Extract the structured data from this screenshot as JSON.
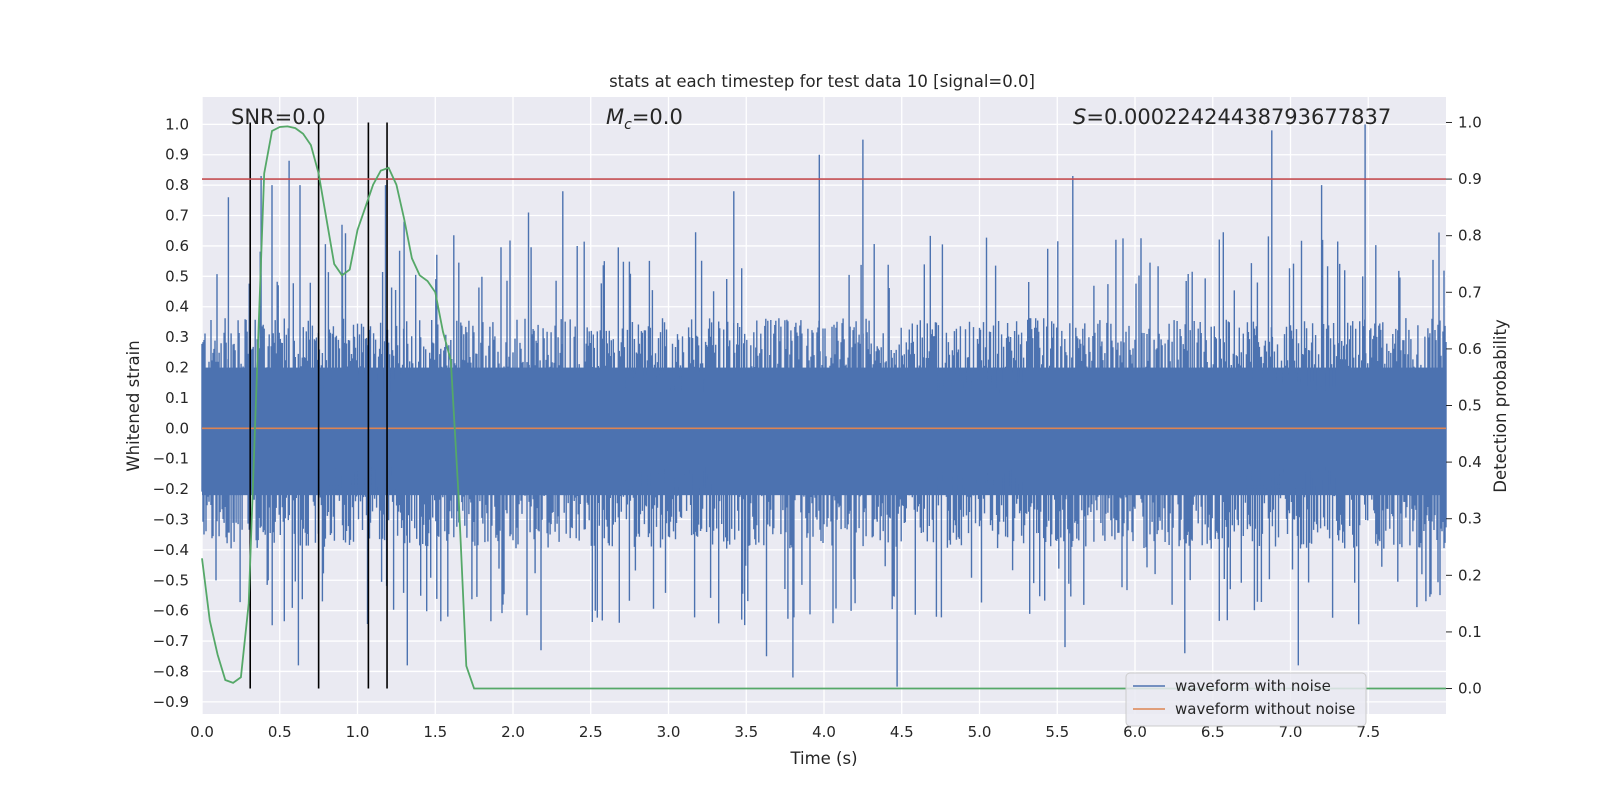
{
  "chart_data": {
    "type": "line",
    "title": "stats at each timestep for test data 10 [signal=0.0]",
    "xlabel": "Time (s)",
    "ylabel": "Whitened strain",
    "y2label": "Detection probability",
    "xlim": [
      0.0,
      8.0
    ],
    "ylim": [
      -0.94,
      1.09
    ],
    "y2lim": [
      -0.045,
      1.045
    ],
    "x_ticks": [
      "0.0",
      "0.5",
      "1.0",
      "1.5",
      "2.0",
      "2.5",
      "3.0",
      "3.5",
      "4.0",
      "4.5",
      "5.0",
      "5.5",
      "6.0",
      "6.5",
      "7.0",
      "7.5"
    ],
    "y_ticks": [
      "1.0",
      "0.9",
      "0.8",
      "0.7",
      "0.6",
      "0.5",
      "0.4",
      "0.3",
      "0.2",
      "0.1",
      "0.0",
      "-0.1",
      "-0.2",
      "-0.3",
      "-0.4",
      "-0.5",
      "-0.6",
      "-0.7",
      "-0.8",
      "-0.9"
    ],
    "y2_ticks": [
      "1.0",
      "0.9",
      "0.8",
      "0.7",
      "0.6",
      "0.5",
      "0.4",
      "0.3",
      "0.2",
      "0.1",
      "0.0"
    ],
    "grid": true,
    "legend_position": "lower-right",
    "annotations": {
      "snr": "SNR=0.0",
      "mc_symbol": "M",
      "mc_sub": "c",
      "mc_value": "=0.0",
      "s_symbol": "S",
      "s_value": "=0.00022424438793677837"
    },
    "series": [
      {
        "name": "waveform with noise",
        "color": "#4c72b0",
        "axis": "left",
        "noise_band": {
          "typical_max": 0.33,
          "typical_min": -0.36
        },
        "peaks": [
          {
            "x": 0.17,
            "y": 0.76
          },
          {
            "x": 0.38,
            "y": 0.83
          },
          {
            "x": 0.45,
            "y": 0.8
          },
          {
            "x": 0.56,
            "y": 0.88
          },
          {
            "x": 0.63,
            "y": 0.8
          },
          {
            "x": 0.9,
            "y": 0.67
          },
          {
            "x": 1.18,
            "y": 0.8
          },
          {
            "x": 1.3,
            "y": 0.68
          },
          {
            "x": 2.1,
            "y": 0.71
          },
          {
            "x": 2.32,
            "y": 0.78
          },
          {
            "x": 3.42,
            "y": 0.78
          },
          {
            "x": 3.97,
            "y": 0.9
          },
          {
            "x": 4.25,
            "y": 0.95
          },
          {
            "x": 5.6,
            "y": 0.83
          },
          {
            "x": 6.88,
            "y": 0.98
          },
          {
            "x": 7.2,
            "y": 0.8
          },
          {
            "x": 7.48,
            "y": 1.0
          }
        ],
        "troughs": [
          {
            "x": 0.62,
            "y": -0.78
          },
          {
            "x": 1.32,
            "y": -0.78
          },
          {
            "x": 2.18,
            "y": -0.73
          },
          {
            "x": 3.63,
            "y": -0.75
          },
          {
            "x": 3.8,
            "y": -0.82
          },
          {
            "x": 4.47,
            "y": -0.85
          },
          {
            "x": 5.55,
            "y": -0.72
          },
          {
            "x": 6.32,
            "y": -0.74
          },
          {
            "x": 7.05,
            "y": -0.78
          }
        ]
      },
      {
        "name": "waveform without noise",
        "color": "#dd8452",
        "axis": "left",
        "x": [
          0.0,
          8.0
        ],
        "y": [
          0.0,
          0.0
        ]
      },
      {
        "color": "#55a868",
        "axis": "right",
        "x": [
          0.0,
          0.05,
          0.1,
          0.15,
          0.2,
          0.25,
          0.3,
          0.35,
          0.4,
          0.45,
          0.5,
          0.55,
          0.6,
          0.65,
          0.7,
          0.75,
          0.8,
          0.85,
          0.9,
          0.95,
          1.0,
          1.05,
          1.1,
          1.15,
          1.2,
          1.25,
          1.3,
          1.35,
          1.4,
          1.45,
          1.5,
          1.55,
          1.6,
          1.65,
          1.7,
          1.75,
          1.8,
          8.0
        ],
        "y": [
          0.23,
          0.12,
          0.06,
          0.015,
          0.01,
          0.02,
          0.15,
          0.53,
          0.91,
          0.985,
          0.992,
          0.993,
          0.99,
          0.98,
          0.96,
          0.91,
          0.83,
          0.75,
          0.73,
          0.74,
          0.81,
          0.85,
          0.89,
          0.915,
          0.92,
          0.89,
          0.83,
          0.76,
          0.73,
          0.72,
          0.7,
          0.63,
          0.58,
          0.34,
          0.04,
          0.0,
          0.0,
          0.0
        ]
      }
    ],
    "threshold": {
      "axis": "right",
      "y": 0.9,
      "color": "#c44e52"
    },
    "event_lines": {
      "color": "#000000",
      "x": [
        0.31,
        0.75,
        1.07,
        1.19
      ]
    }
  }
}
